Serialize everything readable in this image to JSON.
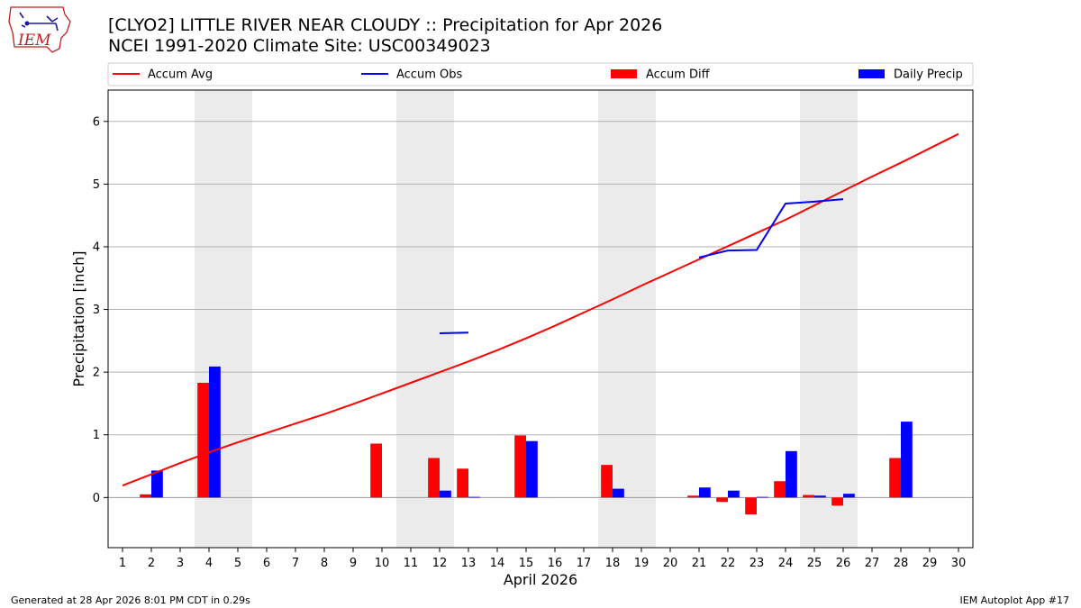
{
  "header": {
    "title_line1": "[CLYO2] LITTLE RIVER NEAR CLOUDY :: Precipitation for Apr 2026",
    "title_line2": "NCEI 1991-2020 Climate Site: USC00349023",
    "logo_text": "IEM"
  },
  "footer": {
    "generated": "Generated at 28 Apr 2026 8:01 PM CDT in 0.29s",
    "app": "IEM Autoplot App #17"
  },
  "colors": {
    "accum_avg": "#ff0000",
    "accum_obs": "#0000ff",
    "accum_diff": "#ff0000",
    "daily_precip": "#0000ff",
    "weekend_shade": "#ebebeb",
    "grid": "#b0b0b0",
    "zero_line": "#999999"
  },
  "chart_data": {
    "type": "bar",
    "xlabel": "April 2026",
    "ylabel": "Precipitation [inch]",
    "xlim": [
      0.5,
      30.5
    ],
    "ylim": [
      -0.8,
      6.5
    ],
    "x_ticks": [
      1,
      2,
      3,
      4,
      5,
      6,
      7,
      8,
      9,
      10,
      11,
      12,
      13,
      14,
      15,
      16,
      17,
      18,
      19,
      20,
      21,
      22,
      23,
      24,
      25,
      26,
      27,
      28,
      29,
      30
    ],
    "y_ticks": [
      0,
      1,
      2,
      3,
      4,
      5,
      6
    ],
    "grid": "horizontal",
    "legend": {
      "placement": "top",
      "entries": [
        {
          "label": "Accum Avg",
          "kind": "line",
          "color": "#ff0000"
        },
        {
          "label": "Accum Obs",
          "kind": "line",
          "color": "#0000ff"
        },
        {
          "label": "Accum Diff",
          "kind": "bar",
          "color": "#ff0000"
        },
        {
          "label": "Daily Precip",
          "kind": "bar",
          "color": "#0000ff"
        }
      ]
    },
    "weekend_spans": [
      [
        3.5,
        5.5
      ],
      [
        10.5,
        12.5
      ],
      [
        17.5,
        19.5
      ],
      [
        24.5,
        26.5
      ]
    ],
    "accum_avg": {
      "days": [
        1,
        2,
        3,
        4,
        5,
        6,
        7,
        8,
        9,
        10,
        11,
        12,
        13,
        14,
        15,
        16,
        17,
        18,
        19,
        20,
        21,
        22,
        23,
        24,
        25,
        26,
        27,
        28,
        29,
        30
      ],
      "values": [
        0.19,
        0.37,
        0.55,
        0.72,
        0.88,
        1.03,
        1.18,
        1.33,
        1.49,
        1.66,
        1.83,
        2.0,
        2.17,
        2.35,
        2.54,
        2.74,
        2.95,
        3.16,
        3.38,
        3.59,
        3.8,
        4.01,
        4.22,
        4.43,
        4.66,
        4.89,
        5.12,
        5.34,
        5.57,
        5.8
      ]
    },
    "accum_obs_segments": [
      {
        "days": [
          12,
          13
        ],
        "values": [
          2.62,
          2.63
        ]
      },
      {
        "days": [
          21,
          22,
          23,
          24,
          25,
          26
        ],
        "values": [
          3.83,
          3.94,
          3.95,
          4.69,
          4.72,
          4.76
        ]
      }
    ],
    "series": [
      {
        "name": "Accum Diff",
        "days": [
          2,
          4,
          10,
          12,
          13,
          15,
          18,
          21,
          22,
          23,
          24,
          25,
          26,
          28
        ],
        "values": [
          0.05,
          1.83,
          0.86,
          0.63,
          0.46,
          0.99,
          0.52,
          0.03,
          -0.07,
          -0.27,
          0.26,
          0.04,
          -0.13,
          0.63
        ]
      },
      {
        "name": "Daily Precip",
        "days": [
          2,
          4,
          12,
          13,
          15,
          18,
          21,
          22,
          23,
          24,
          25,
          26,
          28
        ],
        "values": [
          0.43,
          2.09,
          0.11,
          0.01,
          0.9,
          0.14,
          0.16,
          0.11,
          0.01,
          0.74,
          0.03,
          0.06,
          1.21
        ]
      }
    ]
  }
}
